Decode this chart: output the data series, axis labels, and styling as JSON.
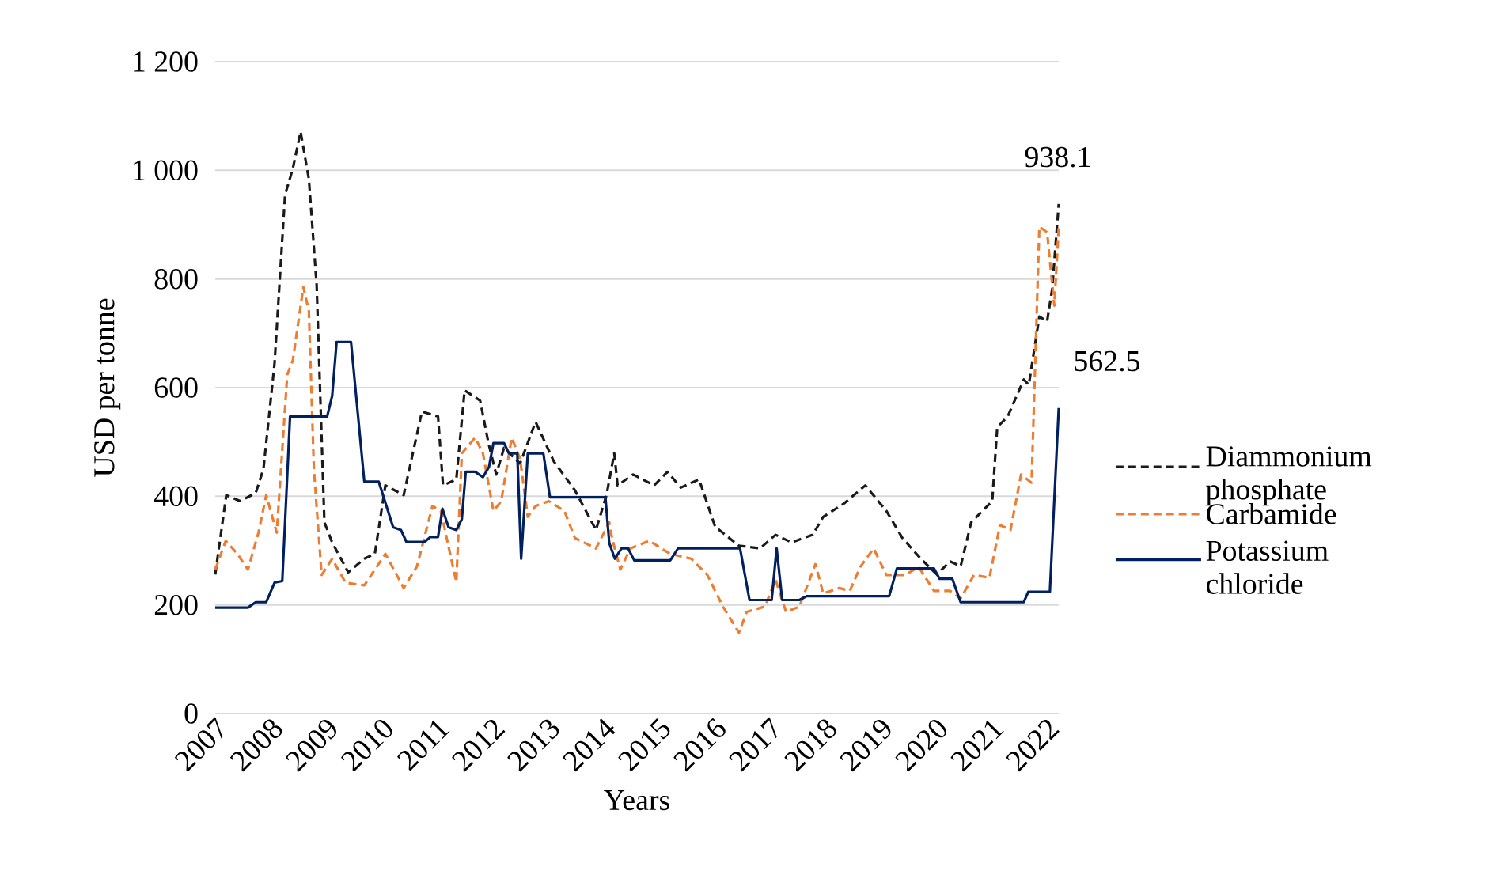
{
  "chart_data": {
    "type": "line",
    "xlabel": "Years",
    "ylabel": "USD per tonne",
    "xlim": [
      2007,
      2022.22
    ],
    "xticks": [
      2007,
      2008,
      2009,
      2010,
      2011,
      2012,
      2013,
      2014,
      2015,
      2016,
      2017,
      2018,
      2019,
      2020,
      2021,
      2022
    ],
    "ylim": [
      0,
      1200
    ],
    "yticks": [
      0,
      200,
      400,
      600,
      800,
      {
        "value": 1000,
        "label": "1 000"
      },
      {
        "value": 1200,
        "label": "1 200"
      }
    ],
    "grid": "y",
    "legend": "right",
    "marker": "none",
    "series": [
      {
        "name": "Diammonium phosphate",
        "color": "#1a1a1a",
        "line_style": "dashed",
        "x": [
          2007.0,
          2007.2,
          2007.45,
          2007.73,
          2007.87,
          2008.07,
          2008.26,
          2008.4,
          2008.54,
          2008.69,
          2008.83,
          2008.97,
          2009.11,
          2009.4,
          2009.69,
          2009.88,
          2010.07,
          2010.4,
          2010.73,
          2011.02,
          2011.11,
          2011.35,
          2011.5,
          2011.78,
          2011.93,
          2012.07,
          2012.21,
          2012.5,
          2012.78,
          2013.11,
          2013.49,
          2013.87,
          2014.06,
          2014.2,
          2014.26,
          2014.54,
          2014.92,
          2015.16,
          2015.4,
          2015.73,
          2016.02,
          2016.45,
          2016.83,
          2017.11,
          2017.4,
          2017.78,
          2017.97,
          2018.35,
          2018.73,
          2019.11,
          2019.4,
          2019.73,
          2020.02,
          2020.26,
          2020.45,
          2020.64,
          2021.02,
          2021.11,
          2021.3,
          2021.59,
          2021.68,
          2021.87,
          2022.01,
          2022.1,
          2022.22
        ],
        "values": [
          256,
          402,
          391,
          406,
          450,
          644,
          955,
          1003,
          1071,
          984,
          789,
          352,
          315,
          260,
          285,
          294,
          420,
          402,
          556,
          547,
          420,
          431,
          595,
          576,
          498,
          440,
          489,
          460,
          537,
          464,
          411,
          338,
          402,
          479,
          420,
          440,
          420,
          445,
          416,
          431,
          344,
          309,
          304,
          329,
          315,
          329,
          362,
          387,
          420,
          373,
          323,
          285,
          256,
          280,
          271,
          352,
          391,
          527,
          547,
          615,
          605,
          731,
          722,
          780,
          938.1
        ]
      },
      {
        "name": "Carbamide",
        "color": "#ed7d31",
        "line_style": "dashed",
        "x": [
          2007.0,
          2007.19,
          2007.4,
          2007.59,
          2007.78,
          2007.92,
          2008.11,
          2008.3,
          2008.4,
          2008.59,
          2008.69,
          2008.78,
          2008.92,
          2009.11,
          2009.35,
          2009.69,
          2010.07,
          2010.4,
          2010.64,
          2010.92,
          2011.07,
          2011.35,
          2011.45,
          2011.69,
          2011.83,
          2012.02,
          2012.16,
          2012.35,
          2012.5,
          2012.64,
          2012.78,
          2013.02,
          2013.3,
          2013.49,
          2013.87,
          2014.11,
          2014.16,
          2014.31,
          2014.49,
          2014.83,
          2015.21,
          2015.59,
          2015.88,
          2016.16,
          2016.45,
          2016.59,
          2016.92,
          2017.11,
          2017.3,
          2017.54,
          2017.83,
          2017.97,
          2018.26,
          2018.45,
          2018.64,
          2018.88,
          2019.11,
          2019.45,
          2019.69,
          2019.97,
          2020.26,
          2020.45,
          2020.69,
          2020.97,
          2021.16,
          2021.35,
          2021.54,
          2021.73,
          2021.87,
          2022.01,
          2022.14,
          2022.22
        ],
        "values": [
          265,
          318,
          294,
          265,
          333,
          402,
          333,
          624,
          650,
          785,
          741,
          450,
          255,
          285,
          241,
          236,
          294,
          231,
          271,
          382,
          373,
          242,
          479,
          508,
          479,
          373,
          391,
          508,
          469,
          362,
          382,
          391,
          373,
          323,
          304,
          352,
          323,
          265,
          304,
          318,
          294,
          285,
          255,
          197,
          149,
          187,
          197,
          246,
          187,
          197,
          275,
          221,
          231,
          226,
          270,
          304,
          255,
          255,
          270,
          226,
          226,
          212,
          255,
          250,
          347,
          338,
          440,
          425,
          896,
          886,
          751,
          896
        ]
      },
      {
        "name": "Potassium chloride",
        "color": "#002060",
        "line_style": "solid",
        "x": [
          2007.0,
          2007.59,
          2007.73,
          2007.92,
          2008.07,
          2008.21,
          2008.35,
          2009.02,
          2009.11,
          2009.19,
          2009.45,
          2009.69,
          2009.95,
          2010.21,
          2010.35,
          2010.45,
          2010.78,
          2010.88,
          2011.02,
          2011.1,
          2011.21,
          2011.35,
          2011.45,
          2011.52,
          2011.69,
          2011.83,
          2011.94,
          2012.02,
          2012.21,
          2012.3,
          2012.45,
          2012.52,
          2012.64,
          2012.92,
          2013.04,
          2014.04,
          2014.11,
          2014.21,
          2014.33,
          2014.45,
          2014.56,
          2015.21,
          2015.35,
          2016.47,
          2016.64,
          2017.04,
          2017.13,
          2017.23,
          2017.54,
          2017.67,
          2019.16,
          2019.3,
          2019.97,
          2020.07,
          2020.3,
          2020.45,
          2021.59,
          2021.67,
          2022.06,
          2022.22
        ],
        "values": [
          195,
          195,
          205,
          205,
          241,
          244,
          547,
          547,
          585,
          684,
          684,
          427,
          427,
          343,
          338,
          316,
          316,
          325,
          325,
          377,
          343,
          338,
          358,
          445,
          445,
          435,
          454,
          498,
          498,
          479,
          479,
          285,
          479,
          479,
          398,
          398,
          314,
          285,
          304,
          304,
          282,
          282,
          304,
          304,
          209,
          209,
          304,
          209,
          209,
          216,
          216,
          267,
          267,
          248,
          248,
          205,
          205,
          224,
          224,
          562.5
        ]
      }
    ],
    "annotations": [
      {
        "text": "938.1",
        "x": 2022.22,
        "y": 938.1
      },
      {
        "text": "562.5",
        "x": 2022.22,
        "y": 562.5
      }
    ]
  }
}
